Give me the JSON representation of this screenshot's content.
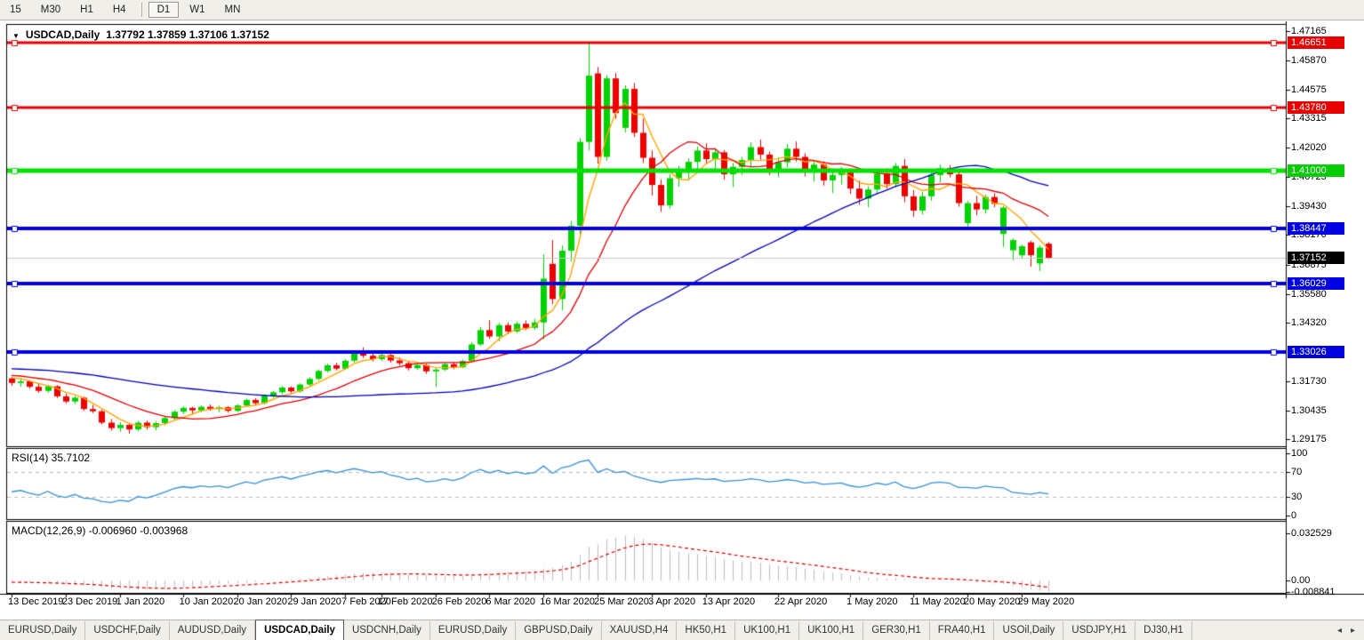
{
  "toolbar": {
    "buttons": [
      {
        "label": "15",
        "active": false
      },
      {
        "label": "M30",
        "active": false
      },
      {
        "label": "H1",
        "active": false
      },
      {
        "label": "H4",
        "active": false
      },
      {
        "label": "D1",
        "active": true
      },
      {
        "label": "W1",
        "active": false
      },
      {
        "label": "MN",
        "active": false
      }
    ]
  },
  "chart": {
    "title_symbol": "USDCAD,Daily",
    "title_ohlc": "1.37792 1.37859 1.37106 1.37152",
    "dropdown_icon": "▼"
  },
  "tabs": {
    "items": [
      "EURUSD,Daily",
      "USDCHF,Daily",
      "AUDUSD,Daily",
      "USDCAD,Daily",
      "USDCNH,Daily",
      "EURUSD,Daily",
      "GBPUSD,Daily",
      "XAUUSD,H4",
      "HK50,H1",
      "UK100,H1",
      "UK100,H1",
      "GER30,H1",
      "FRA40,H1",
      "USOil,Daily",
      "USDJPY,H1",
      "DJ30,H1"
    ],
    "active_index": 3,
    "scroll_left": "◂",
    "scroll_right": "▸"
  },
  "chart_data": {
    "type": "candlestick",
    "symbol": "USDCAD",
    "timeframe": "Daily",
    "current_bar": {
      "open": 1.37792,
      "high": 1.37859,
      "low": 1.37106,
      "close": 1.37152
    },
    "colors": {
      "bull": "#00d200",
      "bear": "#ee0000",
      "ma_fast": "#ffa500",
      "ma_mid": "#e00000",
      "ma_slow": "#0000b4",
      "hline_red": "#e60000",
      "hline_green": "#00e100",
      "hline_blue": "#0000e0",
      "current_line": "#c8c8c8",
      "rsi_line": "#3390d8",
      "rsi_level": "#bbbbbb",
      "macd_hist": "#bebebe",
      "macd_signal": "#dd0000",
      "badge_black": "#000000"
    },
    "price_axis": {
      "ticks": [
        {
          "label": "1.47165",
          "value": 1.47165
        },
        {
          "label": "1.45870",
          "value": 1.4587
        },
        {
          "label": "1.44575",
          "value": 1.44575
        },
        {
          "label": "1.43315",
          "value": 1.43315
        },
        {
          "label": "1.42020",
          "value": 1.4202
        },
        {
          "label": "1.40725",
          "value": 1.40725
        },
        {
          "label": "1.39430",
          "value": 1.3943
        },
        {
          "label": "1.38170",
          "value": 1.3817
        },
        {
          "label": "1.36875",
          "value": 1.36875
        },
        {
          "label": "1.35580",
          "value": 1.3558
        },
        {
          "label": "1.34320",
          "value": 1.3432
        },
        {
          "label": "1.31730",
          "value": 1.3173
        },
        {
          "label": "1.30435",
          "value": 1.30435
        },
        {
          "label": "1.29175",
          "value": 1.29175
        }
      ],
      "badges": [
        {
          "label": "1.46651",
          "value": 1.46651,
          "color": "#e60000"
        },
        {
          "label": "1.43780",
          "value": 1.4378,
          "color": "#e60000"
        },
        {
          "label": "1.41000",
          "value": 1.41,
          "color": "#00cc00"
        },
        {
          "label": "1.38447",
          "value": 1.38447,
          "color": "#0000e0"
        },
        {
          "label": "1.37152",
          "value": 1.37152,
          "color": "#000000"
        },
        {
          "label": "1.36029",
          "value": 1.36029,
          "color": "#0000e0"
        },
        {
          "label": "1.33026",
          "value": 1.33026,
          "color": "#0000e0"
        }
      ]
    },
    "hlines": [
      {
        "value": 1.46651,
        "color": "#e60000",
        "width": 3
      },
      {
        "value": 1.4378,
        "color": "#e60000",
        "width": 3
      },
      {
        "value": 1.41,
        "color": "#00e100",
        "width": 5
      },
      {
        "value": 1.38447,
        "color": "#0000e0",
        "width": 4
      },
      {
        "value": 1.36029,
        "color": "#0000e0",
        "width": 4
      },
      {
        "value": 1.33026,
        "color": "#0000e0",
        "width": 4
      }
    ],
    "current_price": 1.37152,
    "time_axis": {
      "labels": [
        {
          "text": "13 Dec 2019",
          "index": 0
        },
        {
          "text": "23 Dec 2019",
          "index": 6
        },
        {
          "text": "1 Jan 2020",
          "index": 12
        },
        {
          "text": "10 Jan 2020",
          "index": 19
        },
        {
          "text": "20 Jan 2020",
          "index": 25
        },
        {
          "text": "29 Jan 2020",
          "index": 31
        },
        {
          "text": "7 Feb 2020",
          "index": 37
        },
        {
          "text": "17 Feb 2020",
          "index": 41
        },
        {
          "text": "26 Feb 2020",
          "index": 47
        },
        {
          "text": "6 Mar 2020",
          "index": 53
        },
        {
          "text": "16 Mar 2020",
          "index": 59
        },
        {
          "text": "25 Mar 2020",
          "index": 65
        },
        {
          "text": "3 Apr 2020",
          "index": 71
        },
        {
          "text": "13 Apr 2020",
          "index": 77
        },
        {
          "text": "22 Apr 2020",
          "index": 85
        },
        {
          "text": "1 May 2020",
          "index": 93
        },
        {
          "text": "11 May 2020",
          "index": 100
        },
        {
          "text": "20 May 2020",
          "index": 106
        },
        {
          "text": "29 May 2020",
          "index": 112
        }
      ]
    },
    "moving_averages": [
      {
        "period": 5,
        "color": "#ffa500",
        "width": 1.4
      },
      {
        "period": 13,
        "color": "#e00000",
        "width": 1.3
      },
      {
        "period": 45,
        "color": "#0000b4",
        "width": 1.3
      }
    ],
    "rsi": {
      "label": "RSI(14) 35.7102",
      "period": 14,
      "value": 35.7102,
      "levels": [
        70,
        30
      ],
      "ticks": [
        {
          "label": "100",
          "value": 100
        },
        {
          "label": "70",
          "value": 70
        },
        {
          "label": "30",
          "value": 30
        },
        {
          "label": "0",
          "value": 0
        }
      ]
    },
    "macd": {
      "label": "MACD(12,26,9) -0.006960 -0.003968",
      "fast": 12,
      "slow": 26,
      "signal": 9,
      "values": [
        -0.00696,
        -0.003968
      ],
      "ticks": [
        {
          "label": "0.032529",
          "value": 0.032529
        },
        {
          "label": "0.00",
          "value": 0
        },
        {
          "label": "-0.008841",
          "value": -0.008841
        }
      ]
    },
    "history_closes": [
      1.3261,
      1.3273,
      1.3257,
      1.3269,
      1.3253,
      1.3265,
      1.3249,
      1.3261,
      1.3245,
      1.3257,
      1.3241,
      1.3253,
      1.3237,
      1.3249,
      1.3233,
      1.3245,
      1.3229,
      1.3241,
      1.3225,
      1.3237,
      1.3221,
      1.3233,
      1.3217,
      1.3229,
      1.3213,
      1.3225,
      1.3209,
      1.3221,
      1.3205,
      1.3217,
      1.3201,
      1.3213,
      1.3197,
      1.3209,
      1.3193,
      1.3205,
      1.3189,
      1.3201,
      1.3185,
      1.3197
    ],
    "candles": [
      [
        1.3185,
        1.3192,
        1.3152,
        1.3165
      ],
      [
        1.3165,
        1.318,
        1.3148,
        1.3172
      ],
      [
        1.3172,
        1.3178,
        1.314,
        1.3148
      ],
      [
        1.3148,
        1.3165,
        1.3122,
        1.313
      ],
      [
        1.313,
        1.3155,
        1.3122,
        1.315
      ],
      [
        1.315,
        1.3155,
        1.3098,
        1.3106
      ],
      [
        1.3106,
        1.3118,
        1.3075,
        1.3083
      ],
      [
        1.3083,
        1.3108,
        1.3072,
        1.31
      ],
      [
        1.31,
        1.3105,
        1.3042,
        1.305
      ],
      [
        1.305,
        1.3068,
        1.3032,
        1.304
      ],
      [
        1.304,
        1.3048,
        1.2982,
        1.299
      ],
      [
        1.299,
        1.3006,
        1.2955,
        1.2966
      ],
      [
        1.2966,
        1.2992,
        1.295,
        1.298
      ],
      [
        1.298,
        1.2986,
        1.2942,
        1.296
      ],
      [
        1.296,
        1.2998,
        1.2952,
        1.299
      ],
      [
        1.299,
        1.2999,
        1.296,
        1.297
      ],
      [
        1.297,
        1.2995,
        1.2956,
        1.2988
      ],
      [
        1.2988,
        1.3018,
        1.2978,
        1.301
      ],
      [
        1.301,
        1.3045,
        1.3002,
        1.3038
      ],
      [
        1.3038,
        1.3062,
        1.3028,
        1.3055
      ],
      [
        1.3055,
        1.306,
        1.303,
        1.3044
      ],
      [
        1.3044,
        1.3066,
        1.3036,
        1.306
      ],
      [
        1.306,
        1.307,
        1.3042,
        1.305
      ],
      [
        1.305,
        1.3064,
        1.3036,
        1.3058
      ],
      [
        1.3058,
        1.3062,
        1.3034,
        1.3042
      ],
      [
        1.3042,
        1.3072,
        1.3036,
        1.3066
      ],
      [
        1.3066,
        1.3096,
        1.306,
        1.309
      ],
      [
        1.309,
        1.3098,
        1.3068,
        1.3076
      ],
      [
        1.3076,
        1.3114,
        1.307,
        1.3108
      ],
      [
        1.3108,
        1.313,
        1.31,
        1.3124
      ],
      [
        1.3124,
        1.3152,
        1.3116,
        1.3145
      ],
      [
        1.3145,
        1.315,
        1.312,
        1.3128
      ],
      [
        1.3128,
        1.3164,
        1.3122,
        1.3158
      ],
      [
        1.3158,
        1.319,
        1.315,
        1.3183
      ],
      [
        1.3183,
        1.3225,
        1.3175,
        1.3218
      ],
      [
        1.3218,
        1.325,
        1.321,
        1.3243
      ],
      [
        1.3243,
        1.3254,
        1.322,
        1.3228
      ],
      [
        1.3228,
        1.327,
        1.3222,
        1.3263
      ],
      [
        1.3263,
        1.3308,
        1.3255,
        1.3298
      ],
      [
        1.3298,
        1.3322,
        1.3275,
        1.3285
      ],
      [
        1.3285,
        1.33,
        1.326,
        1.327
      ],
      [
        1.327,
        1.3294,
        1.3262,
        1.3288
      ],
      [
        1.3288,
        1.3292,
        1.3254,
        1.3264
      ],
      [
        1.3264,
        1.3277,
        1.3242,
        1.3252
      ],
      [
        1.3252,
        1.326,
        1.322,
        1.323
      ],
      [
        1.323,
        1.325,
        1.3222,
        1.3244
      ],
      [
        1.3244,
        1.325,
        1.3205,
        1.3216
      ],
      [
        1.3216,
        1.323,
        1.3148,
        1.3224
      ],
      [
        1.3224,
        1.3254,
        1.3218,
        1.3248
      ],
      [
        1.3248,
        1.3257,
        1.3226,
        1.3234
      ],
      [
        1.3234,
        1.3268,
        1.323,
        1.3262
      ],
      [
        1.3262,
        1.3345,
        1.3255,
        1.3335
      ],
      [
        1.3335,
        1.3412,
        1.3328,
        1.3398
      ],
      [
        1.3398,
        1.3442,
        1.336,
        1.337
      ],
      [
        1.337,
        1.343,
        1.3348,
        1.342
      ],
      [
        1.342,
        1.3432,
        1.338,
        1.3392
      ],
      [
        1.3392,
        1.3436,
        1.3385,
        1.3426
      ],
      [
        1.3426,
        1.344,
        1.3398,
        1.3408
      ],
      [
        1.3408,
        1.3448,
        1.34,
        1.3432
      ],
      [
        1.3432,
        1.3732,
        1.3358,
        1.3625
      ],
      [
        1.369,
        1.3795,
        1.3512,
        1.3535
      ],
      [
        1.3535,
        1.3772,
        1.3485,
        1.3748
      ],
      [
        1.3748,
        1.388,
        1.37,
        1.3858
      ],
      [
        1.3858,
        1.4245,
        1.3815,
        1.4228
      ],
      [
        1.4228,
        1.4668,
        1.419,
        1.452
      ],
      [
        1.453,
        1.4558,
        1.4132,
        1.4162
      ],
      [
        1.4162,
        1.4522,
        1.4145,
        1.4508
      ],
      [
        1.4508,
        1.4532,
        1.433,
        1.4355
      ],
      [
        1.429,
        1.4478,
        1.427,
        1.4462
      ],
      [
        1.4462,
        1.4488,
        1.425,
        1.4268
      ],
      [
        1.4268,
        1.433,
        1.4135,
        1.4158
      ],
      [
        1.4158,
        1.419,
        1.3992,
        1.4038
      ],
      [
        1.4038,
        1.4062,
        1.392,
        1.3948
      ],
      [
        1.3948,
        1.4085,
        1.3935,
        1.4068
      ],
      [
        1.4068,
        1.4122,
        1.403,
        1.4105
      ],
      [
        1.4105,
        1.4155,
        1.4058,
        1.414
      ],
      [
        1.414,
        1.4208,
        1.4098,
        1.419
      ],
      [
        1.419,
        1.4222,
        1.413,
        1.4152
      ],
      [
        1.4152,
        1.42,
        1.4105,
        1.4182
      ],
      [
        1.4182,
        1.4192,
        1.4062,
        1.4085
      ],
      [
        1.4085,
        1.4135,
        1.4028,
        1.4118
      ],
      [
        1.4118,
        1.4162,
        1.4082,
        1.4148
      ],
      [
        1.4148,
        1.4225,
        1.4118,
        1.4205
      ],
      [
        1.4205,
        1.4238,
        1.415,
        1.4172
      ],
      [
        1.4172,
        1.4185,
        1.4082,
        1.4105
      ],
      [
        1.4105,
        1.416,
        1.4072,
        1.4138
      ],
      [
        1.4138,
        1.4218,
        1.4115,
        1.4198
      ],
      [
        1.4198,
        1.423,
        1.4142,
        1.4162
      ],
      [
        1.4162,
        1.4178,
        1.4075,
        1.4098
      ],
      [
        1.4098,
        1.4145,
        1.4052,
        1.4128
      ],
      [
        1.4128,
        1.4142,
        1.4035,
        1.4058
      ],
      [
        1.4058,
        1.4098,
        1.4002,
        1.4082
      ],
      [
        1.4082,
        1.4118,
        1.404,
        1.4102
      ],
      [
        1.4102,
        1.411,
        1.3998,
        1.4022
      ],
      [
        1.4022,
        1.4058,
        1.3952,
        1.3978
      ],
      [
        1.3978,
        1.4032,
        1.394,
        1.4018
      ],
      [
        1.4018,
        1.4105,
        1.3998,
        1.4088
      ],
      [
        1.4088,
        1.4112,
        1.4022,
        1.4042
      ],
      [
        1.4042,
        1.4135,
        1.4028,
        1.4122
      ],
      [
        1.4122,
        1.4152,
        1.3962,
        1.3988
      ],
      [
        1.3988,
        1.4015,
        1.3898,
        1.3925
      ],
      [
        1.3925,
        1.4008,
        1.3908,
        1.3988
      ],
      [
        1.3988,
        1.4095,
        1.3968,
        1.4082
      ],
      [
        1.4082,
        1.4128,
        1.4048,
        1.4112
      ],
      [
        1.4112,
        1.4125,
        1.4072,
        1.4085
      ],
      [
        1.4085,
        1.4098,
        1.3942,
        1.3958
      ],
      [
        1.387,
        1.3968,
        1.385,
        1.3958
      ],
      [
        1.3958,
        1.399,
        1.3905,
        1.393
      ],
      [
        1.393,
        1.3996,
        1.3912,
        1.3985
      ],
      [
        1.3985,
        1.4002,
        1.394,
        1.3955
      ],
      [
        1.3822,
        1.3945,
        1.3765,
        1.3938
      ],
      [
        1.375,
        1.3802,
        1.3705,
        1.3795
      ],
      [
        1.3728,
        1.3775,
        1.3712,
        1.3768
      ],
      [
        1.3785,
        1.3792,
        1.3678,
        1.3728
      ],
      [
        1.3692,
        1.3772,
        1.3658,
        1.3762
      ],
      [
        1.37792,
        1.37859,
        1.37106,
        1.37152
      ]
    ]
  }
}
